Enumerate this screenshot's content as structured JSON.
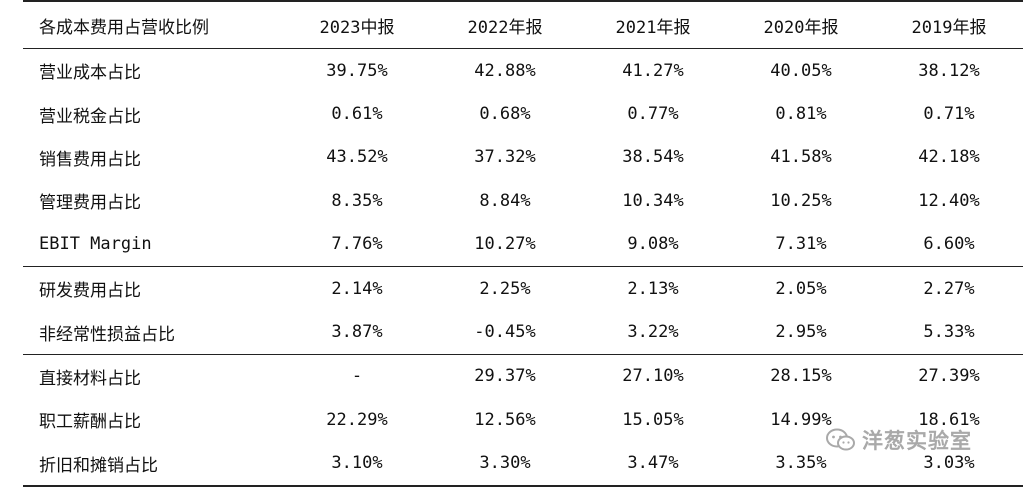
{
  "table": {
    "headers": [
      "各成本费用占营收比例",
      "2023中报",
      "2022年报",
      "2021年报",
      "2020年报",
      "2019年报"
    ],
    "rows": [
      {
        "label": "营业成本占比",
        "values": [
          "39.75%",
          "42.88%",
          "41.27%",
          "40.05%",
          "38.12%"
        ]
      },
      {
        "label": "营业税金占比",
        "values": [
          "0.61%",
          "0.68%",
          "0.77%",
          "0.81%",
          "0.71%"
        ]
      },
      {
        "label": "销售费用占比",
        "values": [
          "43.52%",
          "37.32%",
          "38.54%",
          "41.58%",
          "42.18%"
        ]
      },
      {
        "label": "管理费用占比",
        "values": [
          "8.35%",
          "8.84%",
          "10.34%",
          "10.25%",
          "12.40%"
        ]
      },
      {
        "label": "EBIT Margin",
        "values": [
          "7.76%",
          "10.27%",
          "9.08%",
          "7.31%",
          "6.60%"
        ]
      },
      {
        "label": "研发费用占比",
        "values": [
          "2.14%",
          "2.25%",
          "2.13%",
          "2.05%",
          "2.27%"
        ]
      },
      {
        "label": "非经常性损益占比",
        "values": [
          "3.87%",
          "-0.45%",
          "3.22%",
          "2.95%",
          "5.33%"
        ]
      },
      {
        "label": "直接材料占比",
        "values": [
          "-",
          "29.37%",
          "27.10%",
          "28.15%",
          "27.39%"
        ]
      },
      {
        "label": "职工薪酬占比",
        "values": [
          "22.29%",
          "12.56%",
          "15.05%",
          "14.99%",
          "18.61%"
        ]
      },
      {
        "label": "折旧和摊销占比",
        "values": [
          "3.10%",
          "3.30%",
          "3.47%",
          "3.35%",
          "3.03%"
        ]
      }
    ]
  },
  "watermark": {
    "text": "洋葱实验室",
    "icon": "wechat-icon",
    "color": "#a9a9a9"
  }
}
